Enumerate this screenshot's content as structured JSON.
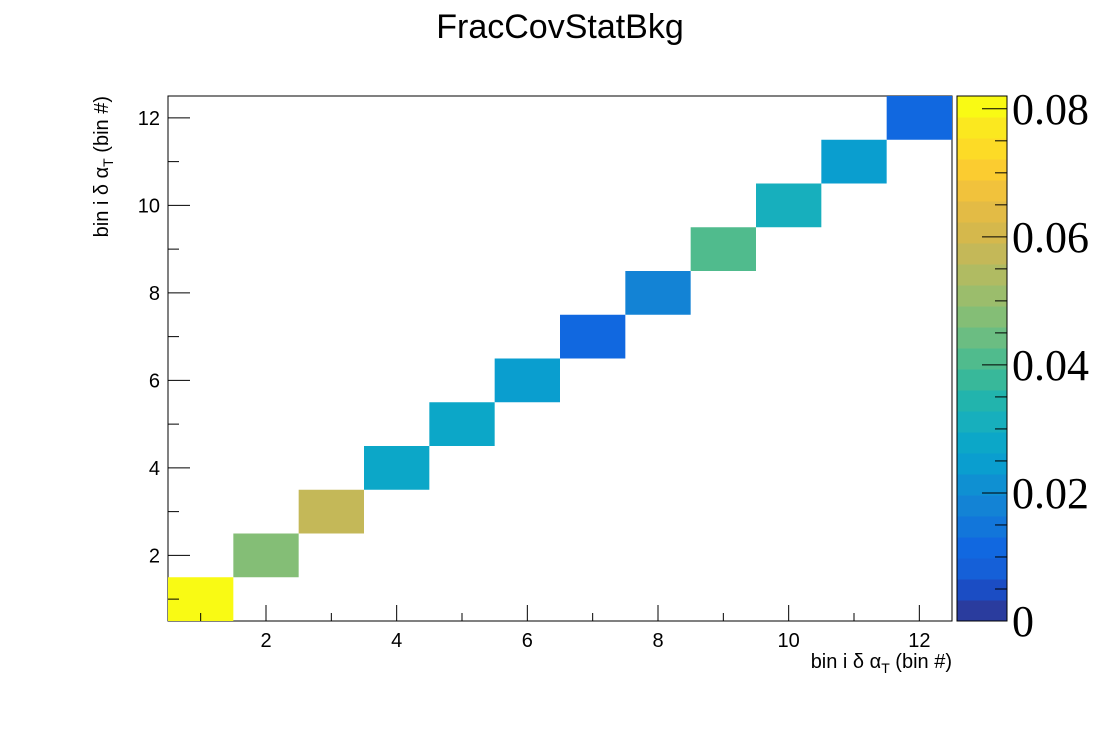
{
  "chart_data": {
    "type": "heatmap",
    "title": "FracCovStatBkg",
    "xlabel": "bin i δ α",
    "xlabel_sub": "T",
    "xlabel_suffix": " (bin #)",
    "ylabel": "bin i δ α",
    "ylabel_sub": "T",
    "ylabel_suffix": " (bin #)",
    "xlim": [
      0.5,
      12.5
    ],
    "ylim": [
      0.5,
      12.5
    ],
    "x_ticks": [
      2,
      4,
      6,
      8,
      10,
      12
    ],
    "y_ticks": [
      2,
      4,
      6,
      8,
      10,
      12
    ],
    "z_range": [
      0,
      0.082
    ],
    "z_ticks": [
      "0",
      "0.02",
      "0.04",
      "0.06",
      "0.08"
    ],
    "z_tick_values": [
      0,
      0.02,
      0.04,
      0.06,
      0.08
    ],
    "grid": false,
    "palette": [
      "#2a3c9e",
      "#1b4dc4",
      "#1560d8",
      "#1168e0",
      "#1276da",
      "#1383d5",
      "#0f90d2",
      "#0a9ecf",
      "#0ca7c8",
      "#17afbd",
      "#22b4ad",
      "#38b89a",
      "#50bb8d",
      "#6bbd82",
      "#84be76",
      "#9bbd6c",
      "#b0bb62",
      "#c4b858",
      "#d5b84c",
      "#e3bb45",
      "#f1c23c",
      "#fbcc30",
      "#fddb26",
      "#fbe81f",
      "#f9fa14"
    ],
    "cells": [
      {
        "x": 1,
        "y": 1,
        "z": 0.082
      },
      {
        "x": 2,
        "y": 2,
        "z": 0.048
      },
      {
        "x": 3,
        "y": 3,
        "z": 0.056
      },
      {
        "x": 4,
        "y": 4,
        "z": 0.027
      },
      {
        "x": 5,
        "y": 5,
        "z": 0.027
      },
      {
        "x": 6,
        "y": 6,
        "z": 0.026
      },
      {
        "x": 7,
        "y": 7,
        "z": 0.011
      },
      {
        "x": 8,
        "y": 8,
        "z": 0.018
      },
      {
        "x": 9,
        "y": 9,
        "z": 0.042
      },
      {
        "x": 10,
        "y": 10,
        "z": 0.03
      },
      {
        "x": 11,
        "y": 11,
        "z": 0.026
      },
      {
        "x": 12,
        "y": 12,
        "z": 0.012
      }
    ]
  }
}
